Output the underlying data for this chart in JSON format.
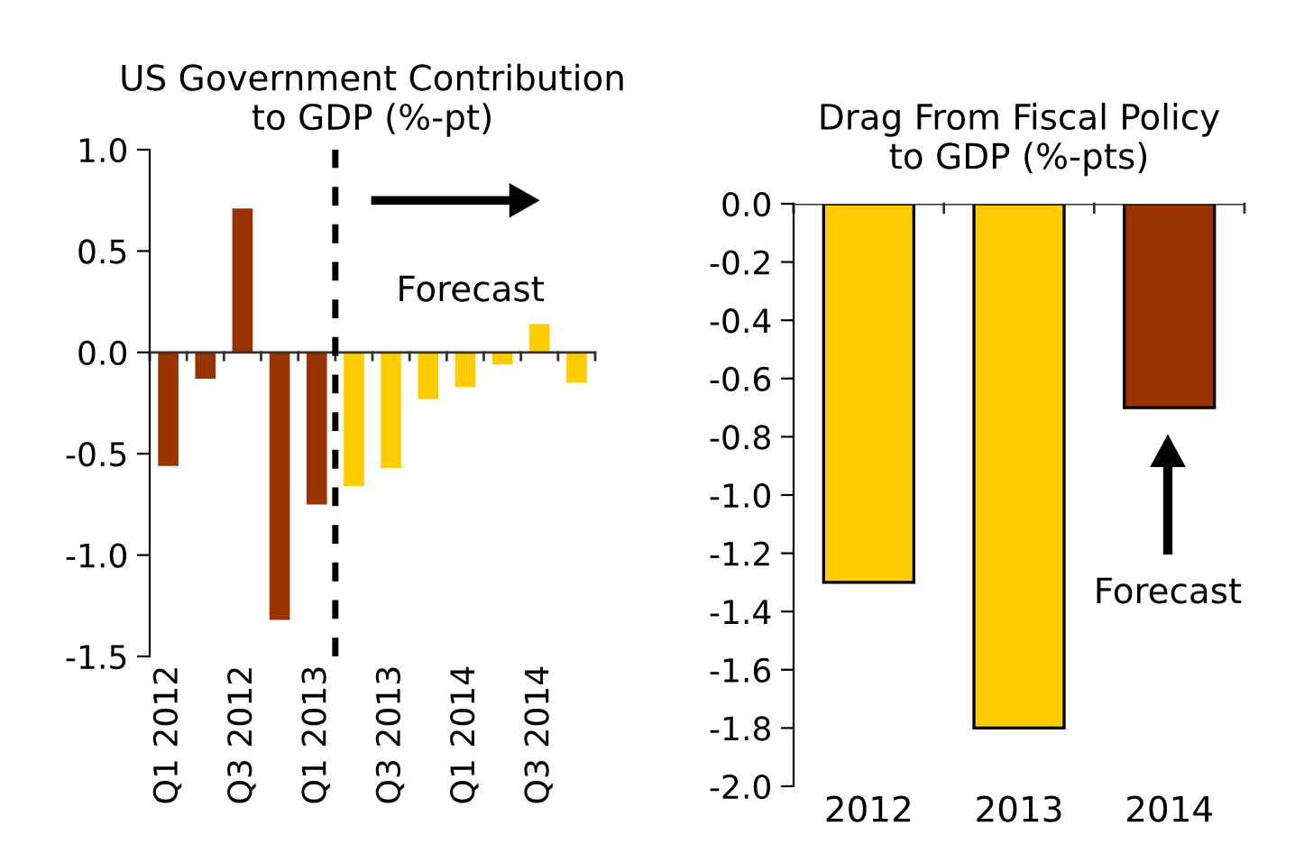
{
  "chart_data": [
    {
      "type": "bar",
      "title": "US Government Contribution\nto GDP (%-pt)",
      "categories": [
        "Q1 2012",
        null,
        "Q3 2012",
        null,
        "Q1 2013",
        null,
        "Q3 2013",
        null,
        "Q1 2014",
        null,
        "Q3 2014",
        null
      ],
      "values": [
        -0.56,
        -0.13,
        0.71,
        -1.32,
        -0.75,
        -0.66,
        -0.57,
        -0.23,
        -0.17,
        -0.06,
        0.14,
        -0.15
      ],
      "colors": [
        "#993300",
        "#993300",
        "#993300",
        "#993300",
        "#993300",
        "#ffcc00",
        "#ffcc00",
        "#ffcc00",
        "#ffcc00",
        "#ffcc00",
        "#ffcc00",
        "#ffcc00"
      ],
      "ylim": [
        -1.5,
        1.0
      ],
      "yticks": [
        {
          "value": -1.5,
          "label": "-1.5"
        },
        {
          "value": -1.0,
          "label": "-1.0"
        },
        {
          "value": -0.5,
          "label": "-0.5"
        },
        {
          "value": 0.0,
          "label": "0.0"
        },
        {
          "value": 0.5,
          "label": "0.5"
        },
        {
          "value": 1.0,
          "label": "1.0"
        }
      ],
      "annotations": [
        "Forecast"
      ]
    },
    {
      "type": "bar",
      "title": "Drag From Fiscal Policy\nto GDP (%-pts)",
      "categories": [
        "2012",
        "2013",
        "2014"
      ],
      "values": [
        -1.3,
        -1.8,
        -0.7
      ],
      "colors": [
        "#ffcc00",
        "#ffcc00",
        "#993300"
      ],
      "ylim": [
        -2.0,
        0.0
      ],
      "yticks": [
        {
          "value": -2.0,
          "label": "-2.0"
        },
        {
          "value": -1.8,
          "label": "-1.8"
        },
        {
          "value": -1.6,
          "label": "-1.6"
        },
        {
          "value": -1.4,
          "label": "-1.4"
        },
        {
          "value": -1.2,
          "label": "-1.2"
        },
        {
          "value": -1.0,
          "label": "-1.0"
        },
        {
          "value": -0.8,
          "label": "-0.8"
        },
        {
          "value": -0.6,
          "label": "-0.6"
        },
        {
          "value": -0.4,
          "label": "-0.4"
        },
        {
          "value": -0.2,
          "label": "-0.2"
        },
        {
          "value": 0.0,
          "label": "0.0"
        }
      ],
      "annotations": [
        "Forecast"
      ]
    }
  ]
}
